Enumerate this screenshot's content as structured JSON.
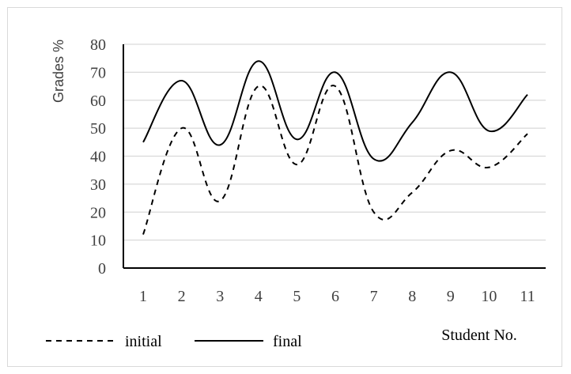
{
  "chart_data": {
    "type": "line",
    "x": [
      1,
      2,
      3,
      4,
      5,
      6,
      7,
      8,
      9,
      10,
      11
    ],
    "series": [
      {
        "name": "initial",
        "values": [
          12,
          50,
          24,
          65,
          37,
          65,
          20,
          27,
          42,
          36,
          48
        ],
        "style": "dashed",
        "color": "#000000"
      },
      {
        "name": "final",
        "values": [
          45,
          67,
          44,
          74,
          46,
          70,
          39,
          52,
          70,
          49,
          62
        ],
        "style": "solid",
        "color": "#000000"
      }
    ],
    "title": "",
    "xlabel": "Student No.",
    "ylabel": "Grades %",
    "ylim": [
      0,
      80
    ],
    "yticks": [
      0,
      10,
      20,
      30,
      40,
      50,
      60,
      70,
      80
    ],
    "grid": true,
    "legend_position": "bottom-left",
    "colors": {
      "grid": "#d9d9d9",
      "axis": "#000000",
      "text": "#404040"
    }
  }
}
